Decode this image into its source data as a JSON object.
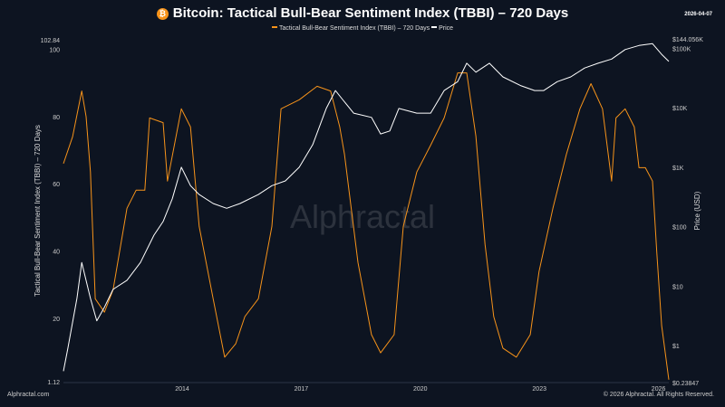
{
  "header": {
    "title": "Bitcoin: Tactical Bull-Bear Sentiment Index (TBBI) – 720 Days",
    "date": "2026-04-07",
    "icon": "bitcoin-icon"
  },
  "footer": {
    "left": "Alphractal.com",
    "right": "© 2026 Alphractal. All Rights Reserved."
  },
  "watermark": "Alphractal",
  "colors": {
    "tbbi": "#f7931a",
    "price": "#ffffff",
    "background": "#0d1421"
  },
  "chart_data": {
    "type": "line",
    "title": "Bitcoin: Tactical Bull-Bear Sentiment Index (TBBI) – 720 Days",
    "legend_position": "top-center",
    "grid": false,
    "x_ticks": [
      "2014",
      "2017",
      "2020",
      "2023",
      "2026"
    ],
    "y_left": {
      "label": "Tactical Bull-Bear Sentiment Index (TBBI) – 720 Days",
      "range": [
        1.12,
        102.84
      ],
      "ticks": [
        "1.12",
        "20",
        "40",
        "60",
        "80",
        "100",
        "102.84"
      ]
    },
    "y_right": {
      "label": "Price (USD)",
      "scale": "log",
      "range": [
        0.23847,
        144056
      ],
      "ticks": [
        "$0.23847",
        "$1",
        "$10",
        "$100",
        "$1K",
        "$10K",
        "$100K",
        "$144.056K"
      ]
    },
    "series": [
      {
        "name": "Tactical Bull-Bear Sentiment Index (TBBI) – 720 Days",
        "axis": "left",
        "points": [
          [
            2011.01,
            66
          ],
          [
            2011.24,
            74
          ],
          [
            2011.47,
            87.6
          ],
          [
            2011.58,
            80
          ],
          [
            2011.69,
            63.5
          ],
          [
            2011.81,
            25.8
          ],
          [
            2012.04,
            21.8
          ],
          [
            2012.26,
            28.5
          ],
          [
            2012.61,
            52.7
          ],
          [
            2012.84,
            58.1
          ],
          [
            2013.06,
            58.1
          ],
          [
            2013.18,
            79.6
          ],
          [
            2013.52,
            78.2
          ],
          [
            2013.63,
            60.8
          ],
          [
            2013.98,
            82.3
          ],
          [
            2014.21,
            76.9
          ],
          [
            2014.43,
            47.3
          ],
          [
            2014.78,
            25.8
          ],
          [
            2015.07,
            8.4
          ],
          [
            2015.35,
            12.4
          ],
          [
            2015.58,
            20.5
          ],
          [
            2015.92,
            25.8
          ],
          [
            2016.26,
            47.3
          ],
          [
            2016.49,
            82.3
          ],
          [
            2016.95,
            85
          ],
          [
            2017.4,
            89
          ],
          [
            2017.74,
            87.6
          ],
          [
            2017.97,
            76.9
          ],
          [
            2018.09,
            68.8
          ],
          [
            2018.43,
            36.6
          ],
          [
            2018.77,
            15.1
          ],
          [
            2019.0,
            9.7
          ],
          [
            2019.34,
            15.1
          ],
          [
            2019.57,
            47.3
          ],
          [
            2019.91,
            63.5
          ],
          [
            2020.26,
            71.5
          ],
          [
            2020.6,
            79.6
          ],
          [
            2020.94,
            93
          ],
          [
            2021.17,
            93
          ],
          [
            2021.4,
            74.2
          ],
          [
            2021.63,
            42
          ],
          [
            2021.85,
            20.5
          ],
          [
            2022.08,
            11.1
          ],
          [
            2022.42,
            8.4
          ],
          [
            2022.77,
            15.1
          ],
          [
            2022.99,
            33.9
          ],
          [
            2023.34,
            52.7
          ],
          [
            2023.68,
            68.8
          ],
          [
            2024.02,
            82.3
          ],
          [
            2024.3,
            89.8
          ],
          [
            2024.59,
            82.3
          ],
          [
            2024.82,
            60.8
          ],
          [
            2024.93,
            79.6
          ],
          [
            2025.16,
            82.3
          ],
          [
            2025.39,
            76.9
          ],
          [
            2025.51,
            64.8
          ],
          [
            2025.67,
            64.8
          ],
          [
            2025.85,
            60.8
          ],
          [
            2025.96,
            39.3
          ],
          [
            2026.08,
            17.8
          ],
          [
            2026.26,
            1.7
          ]
        ]
      },
      {
        "name": "Price",
        "axis": "right",
        "points": [
          [
            2011.01,
            0.37
          ],
          [
            2011.12,
            0.9
          ],
          [
            2011.35,
            6.2
          ],
          [
            2011.47,
            25
          ],
          [
            2011.69,
            6.2
          ],
          [
            2011.85,
            2.6
          ],
          [
            2012.04,
            4.4
          ],
          [
            2012.26,
            8.8
          ],
          [
            2012.61,
            12.5
          ],
          [
            2012.95,
            25
          ],
          [
            2013.29,
            72
          ],
          [
            2013.52,
            122
          ],
          [
            2013.75,
            294
          ],
          [
            2013.98,
            1000
          ],
          [
            2014.21,
            490
          ],
          [
            2014.43,
            347
          ],
          [
            2014.78,
            245
          ],
          [
            2015.12,
            204
          ],
          [
            2015.46,
            245
          ],
          [
            2015.92,
            347
          ],
          [
            2016.26,
            490
          ],
          [
            2016.6,
            589
          ],
          [
            2016.95,
            1000
          ],
          [
            2017.29,
            2400
          ],
          [
            2017.63,
            9770
          ],
          [
            2017.86,
            19500
          ],
          [
            2018.04,
            13800
          ],
          [
            2018.32,
            8130
          ],
          [
            2018.77,
            6900
          ],
          [
            2019.0,
            3630
          ],
          [
            2019.23,
            4070
          ],
          [
            2019.46,
            9770
          ],
          [
            2019.91,
            8130
          ],
          [
            2020.26,
            8130
          ],
          [
            2020.6,
            19500
          ],
          [
            2020.94,
            27500
          ],
          [
            2021.17,
            56200
          ],
          [
            2021.4,
            39800
          ],
          [
            2021.74,
            56200
          ],
          [
            2022.08,
            33100
          ],
          [
            2022.54,
            23400
          ],
          [
            2022.88,
            19500
          ],
          [
            2023.11,
            19500
          ],
          [
            2023.45,
            27500
          ],
          [
            2023.79,
            33100
          ],
          [
            2024.14,
            46800
          ],
          [
            2024.48,
            56200
          ],
          [
            2024.82,
            66100
          ],
          [
            2025.16,
            95500
          ],
          [
            2025.51,
            112000
          ],
          [
            2025.85,
            120000
          ],
          [
            2026.08,
            79400
          ],
          [
            2026.26,
            60300
          ]
        ]
      }
    ]
  }
}
